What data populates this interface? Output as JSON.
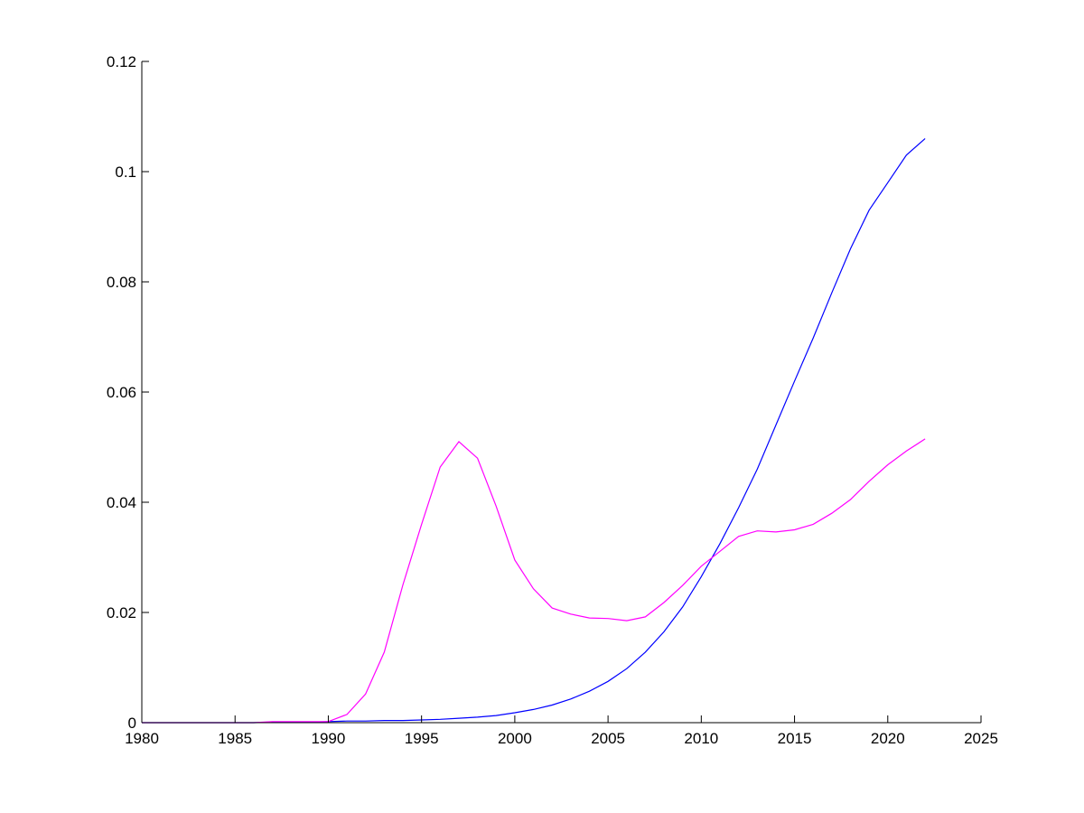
{
  "chart_data": {
    "type": "line",
    "title": "",
    "xlabel": "",
    "ylabel": "",
    "xlim": [
      1980,
      2025
    ],
    "ylim": [
      0,
      0.12
    ],
    "grid": false,
    "x_ticks": [
      "1980",
      "1985",
      "1990",
      "1995",
      "2000",
      "2005",
      "2010",
      "2015",
      "2020",
      "2025"
    ],
    "y_ticks": [
      "0",
      "0.02",
      "0.04",
      "0.06",
      "0.08",
      "0.1",
      "0.12"
    ],
    "x": [
      1980,
      1981,
      1982,
      1983,
      1984,
      1985,
      1986,
      1987,
      1988,
      1989,
      1990,
      1991,
      1992,
      1993,
      1994,
      1995,
      1996,
      1997,
      1998,
      1999,
      2000,
      2001,
      2002,
      2003,
      2004,
      2005,
      2006,
      2007,
      2008,
      2009,
      2010,
      2011,
      2012,
      2013,
      2014,
      2015,
      2016,
      2017,
      2018,
      2019,
      2020,
      2021,
      2022
    ],
    "series": [
      {
        "color": "#0000ff",
        "values": [
          0,
          0,
          0,
          0,
          0,
          0,
          0,
          0.0001,
          0.0001,
          0.0001,
          0.0002,
          0.0003,
          0.0003,
          0.0004,
          0.0004,
          0.0005,
          0.0006,
          0.0008,
          0.001,
          0.0013,
          0.0018,
          0.0024,
          0.0032,
          0.0043,
          0.0057,
          0.0075,
          0.0098,
          0.0128,
          0.0165,
          0.021,
          0.0265,
          0.0325,
          0.039,
          0.046,
          0.054,
          0.062,
          0.0698,
          0.078,
          0.086,
          0.093,
          0.098,
          0.103,
          0.106
        ]
      },
      {
        "color": "#ff00ff",
        "values": [
          0,
          0,
          0,
          0,
          0,
          0,
          0,
          0.0002,
          0.0002,
          0.0002,
          0.0002,
          0.0015,
          0.0052,
          0.0128,
          0.025,
          0.036,
          0.0464,
          0.051,
          0.048,
          0.0393,
          0.0295,
          0.0243,
          0.0208,
          0.0197,
          0.019,
          0.0189,
          0.0185,
          0.0192,
          0.0218,
          0.0249,
          0.0284,
          0.0311,
          0.0338,
          0.0348,
          0.0346,
          0.035,
          0.036,
          0.038,
          0.0405,
          0.0438,
          0.0468,
          0.0493,
          0.0515
        ]
      }
    ]
  }
}
